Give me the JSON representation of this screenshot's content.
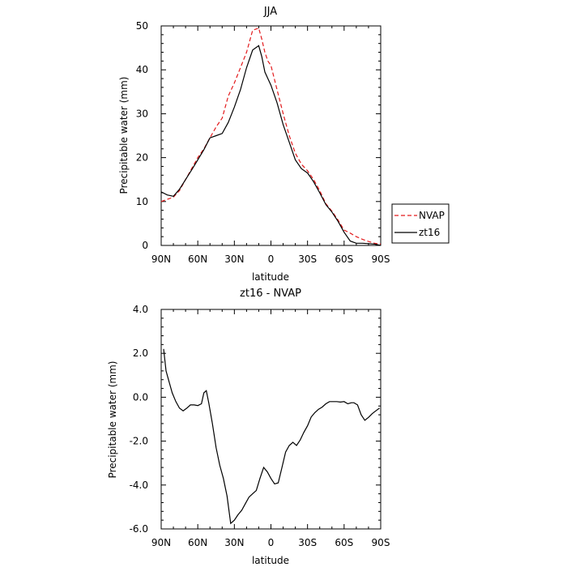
{
  "chart_data": [
    {
      "type": "line",
      "title": "JJA",
      "xlabel": "latitude",
      "ylabel": "Precipitable water (mm)",
      "xlim": [
        90,
        -90
      ],
      "ylim": [
        0,
        50
      ],
      "xticks": [
        90,
        60,
        30,
        0,
        -30,
        -60,
        -90
      ],
      "xtick_labels": [
        "90N",
        "60N",
        "30N",
        "0",
        "30S",
        "60S",
        "90S"
      ],
      "yticks": [
        0,
        10,
        20,
        30,
        40,
        50
      ],
      "ytick_labels": [
        "0",
        "10",
        "20",
        "30",
        "40",
        "50"
      ],
      "legend": "right, outside plot",
      "series": [
        {
          "name": "NVAP",
          "color": "#e31a1c",
          "style": "dashed",
          "x": [
            90,
            85,
            80,
            75,
            70,
            65,
            60,
            55,
            50,
            45,
            40,
            35,
            30,
            25,
            20,
            15,
            10,
            7.5,
            5,
            2.5,
            0,
            -5,
            -10,
            -15,
            -20,
            -25,
            -30,
            -35,
            -40,
            -45,
            -50,
            -55,
            -60,
            -65,
            -70,
            -75,
            -80,
            -85,
            -90
          ],
          "y": [
            10,
            10.5,
            11,
            12.5,
            15,
            17.5,
            20,
            22,
            24.5,
            27,
            29,
            34,
            37,
            40.5,
            44,
            49,
            49.5,
            47,
            44,
            42,
            41,
            35.5,
            30,
            25,
            21,
            18.5,
            17,
            15,
            12.5,
            9.5,
            7.8,
            5.8,
            3.5,
            2.8,
            2.0,
            1.4,
            0.9,
            0.5,
            0.3
          ]
        },
        {
          "name": "zt16",
          "color": "#000000",
          "style": "solid",
          "x": [
            90,
            85,
            80,
            75,
            70,
            65,
            60,
            55,
            50,
            45,
            40,
            35,
            30,
            25,
            20,
            15,
            10,
            7.5,
            5,
            2.5,
            0,
            -5,
            -10,
            -15,
            -20,
            -25,
            -30,
            -35,
            -40,
            -45,
            -50,
            -55,
            -60,
            -65,
            -70,
            -75,
            -80,
            -85,
            -90
          ],
          "y": [
            12.2,
            11.5,
            11.2,
            12.8,
            15,
            17.2,
            19.5,
            21.8,
            24.5,
            25,
            25.5,
            28,
            31.5,
            35.5,
            40.5,
            44.5,
            45.5,
            43,
            39.5,
            38,
            36.5,
            32.5,
            27.5,
            23.5,
            19.5,
            17.5,
            16.5,
            14.5,
            12,
            9.3,
            7.6,
            5.5,
            3,
            1,
            0.5,
            0.5,
            0.4,
            0.3,
            0
          ]
        }
      ]
    },
    {
      "type": "line",
      "title": "zt16 - NVAP",
      "xlabel": "latitude",
      "ylabel": "Precipitable water (mm)",
      "xlim": [
        90,
        -90
      ],
      "ylim": [
        -6,
        4
      ],
      "xticks": [
        90,
        60,
        30,
        0,
        -30,
        -60,
        -90
      ],
      "xtick_labels": [
        "90N",
        "60N",
        "30N",
        "0",
        "30S",
        "60S",
        "90S"
      ],
      "yticks": [
        -6,
        -4,
        -2,
        0,
        2,
        4
      ],
      "ytick_labels": [
        "-6.0",
        "-4.0",
        "-2.0",
        "0.0",
        "2.0",
        "4.0"
      ],
      "series": [
        {
          "color": "#000000",
          "style": "solid",
          "x": [
            88,
            86,
            84,
            81,
            78,
            75,
            72,
            69,
            66,
            63,
            60,
            57,
            55,
            53,
            51,
            48,
            45,
            42,
            39,
            36,
            33,
            30,
            27,
            24,
            21,
            18,
            15,
            12,
            9,
            6,
            3,
            0,
            -3,
            -6,
            -9,
            -12,
            -15,
            -18,
            -21,
            -24,
            -27,
            -30,
            -33,
            -36,
            -39,
            -42,
            -45,
            -48,
            -51,
            -54,
            -57,
            -60,
            -63,
            -66,
            -68,
            -71,
            -74,
            -77,
            -80,
            -83,
            -86,
            -89
          ],
          "y": [
            2.2,
            1.2,
            0.8,
            0.2,
            -0.2,
            -0.5,
            -0.62,
            -0.5,
            -0.35,
            -0.35,
            -0.38,
            -0.3,
            0.2,
            0.3,
            -0.25,
            -1.2,
            -2.3,
            -3.1,
            -3.7,
            -4.5,
            -5.75,
            -5.6,
            -5.35,
            -5.15,
            -4.85,
            -4.55,
            -4.4,
            -4.25,
            -3.7,
            -3.2,
            -3.4,
            -3.7,
            -3.95,
            -3.9,
            -3.2,
            -2.5,
            -2.2,
            -2.05,
            -2.2,
            -1.95,
            -1.6,
            -1.3,
            -0.9,
            -0.7,
            -0.55,
            -0.45,
            -0.3,
            -0.2,
            -0.2,
            -0.2,
            -0.22,
            -0.2,
            -0.3,
            -0.25,
            -0.25,
            -0.35,
            -0.8,
            -1.05,
            -0.92,
            -0.75,
            -0.62,
            -0.5
          ]
        }
      ]
    }
  ],
  "legend_labels": [
    "NVAP",
    "zt16"
  ]
}
